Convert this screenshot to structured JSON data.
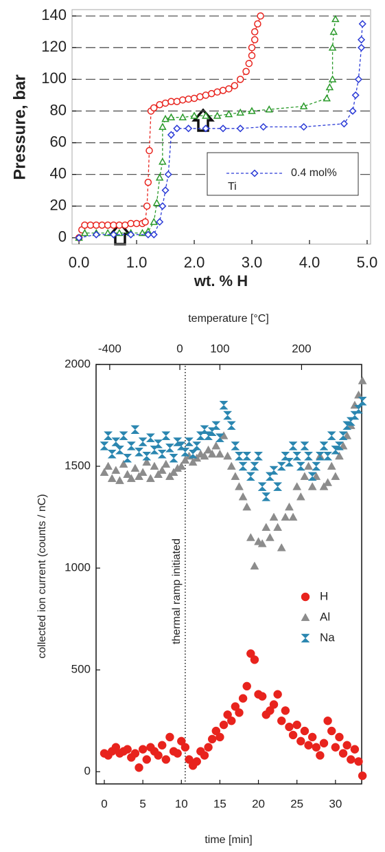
{
  "chart_data": [
    {
      "type": "line",
      "xlabel": "wt. % H",
      "ylabel": "Pressure, bar",
      "xlim": [
        -0.12,
        5.06
      ],
      "ylim": [
        -4,
        144
      ],
      "xticks": [
        {
          "value": 0,
          "label": "0.0"
        },
        {
          "value": 1,
          "label": "1.0"
        },
        {
          "value": 2,
          "label": "2.0"
        },
        {
          "value": 3,
          "label": "3.0"
        },
        {
          "value": 4,
          "label": "4.0"
        },
        {
          "value": 5,
          "label": "5.0"
        }
      ],
      "yticks": [
        0,
        20,
        40,
        60,
        80,
        100,
        120,
        140
      ],
      "grid": true,
      "legend_subtext": "Ti",
      "series": [
        {
          "color": "#e8231d",
          "marker": "circle",
          "x": [
            0,
            0.05,
            0.1,
            0.2,
            0.3,
            0.4,
            0.5,
            0.6,
            0.7,
            0.8,
            0.9,
            1.0,
            1.1,
            1.15,
            1.18,
            1.2,
            1.22,
            1.25,
            1.3,
            1.4,
            1.5,
            1.6,
            1.7,
            1.8,
            1.9,
            2.0,
            2.1,
            2.2,
            2.3,
            2.4,
            2.5,
            2.6,
            2.7,
            2.8,
            2.9,
            2.95,
            3.0,
            3.0,
            3.05,
            3.05,
            3.1,
            3.15
          ],
          "values": [
            0,
            5,
            8,
            8,
            8,
            8,
            8,
            8,
            8,
            8,
            9,
            9,
            9,
            10,
            20,
            35,
            55,
            80,
            82,
            84,
            85,
            86,
            86,
            87,
            87.5,
            88,
            89,
            90,
            91,
            92,
            93,
            94,
            96,
            100,
            105,
            110,
            115,
            120,
            125,
            130,
            135,
            140
          ]
        },
        {
          "color": "#2a9a2a",
          "marker": "triangle",
          "x": [
            0,
            0.1,
            0.3,
            0.5,
            0.7,
            0.9,
            1.1,
            1.2,
            1.3,
            1.35,
            1.4,
            1.45,
            1.45,
            1.5,
            1.6,
            1.8,
            2.0,
            2.2,
            2.4,
            2.6,
            2.8,
            3.0,
            3.3,
            3.9,
            4.3,
            4.35,
            4.4,
            4.4,
            4.42,
            4.45
          ],
          "values": [
            0,
            3,
            3,
            3,
            3,
            3,
            3,
            4,
            10,
            22,
            38,
            48,
            70,
            75,
            76,
            76,
            77,
            77,
            77,
            78,
            79,
            80,
            81,
            83,
            88,
            95,
            100,
            120,
            130,
            138
          ]
        },
        {
          "name": "0.4 mol%",
          "color": "#2a3ad6",
          "marker": "diamond",
          "x": [
            0,
            0.3,
            0.6,
            0.9,
            1.2,
            1.3,
            1.4,
            1.45,
            1.5,
            1.55,
            1.6,
            1.7,
            1.9,
            2.2,
            2.5,
            2.8,
            3.2,
            3.9,
            4.6,
            4.75,
            4.8,
            4.85,
            4.9,
            4.9,
            4.92
          ],
          "values": [
            0,
            2,
            2,
            2,
            2,
            2,
            10,
            20,
            30,
            40,
            65,
            69,
            69,
            69,
            69,
            69,
            70,
            70,
            72,
            80,
            90,
            100,
            120,
            125,
            135
          ]
        }
      ]
    },
    {
      "type": "scatter",
      "xlabel": "time [min]",
      "ylabel": "collected ion current (counts / nC)",
      "x2label": "temperature [°C]",
      "xlim": [
        -1.07,
        33.4
      ],
      "ylim": [
        -60,
        2000
      ],
      "xticks": [
        0,
        5,
        10,
        15,
        20,
        25,
        30
      ],
      "yticks": [
        0,
        500,
        1000,
        1500,
        2000
      ],
      "x2ticks": [
        {
          "value": 0.7,
          "label": "-400"
        },
        {
          "value": 9.8,
          "label": "0"
        },
        {
          "value": 15,
          "label": "100"
        },
        {
          "value": 25.6,
          "label": "200"
        }
      ],
      "annotations": [
        {
          "text": "thermal ramp initiated",
          "x": 10.5
        }
      ],
      "x": [
        0,
        0.5,
        1,
        1.5,
        2,
        2.5,
        3,
        3.5,
        4,
        4.5,
        5,
        5.5,
        6,
        6.5,
        7,
        7.5,
        8,
        8.5,
        9,
        9.5,
        10,
        10.5,
        11,
        11.5,
        12,
        12.5,
        13,
        13.5,
        14,
        14.5,
        15,
        15.5,
        16,
        16.5,
        17,
        17.5,
        18,
        18.5,
        19,
        19.5,
        20,
        20.5,
        21,
        21.5,
        22,
        22.5,
        23,
        23.5,
        24,
        24.5,
        25,
        25.5,
        26,
        26.5,
        27,
        27.5,
        28,
        28.5,
        29,
        29.5,
        30,
        30.5,
        31,
        31.5,
        32,
        32.5,
        33,
        33.5
      ],
      "series": [
        {
          "name": "H",
          "color": "#e8231d",
          "marker": "circle",
          "values": [
            90,
            80,
            100,
            120,
            90,
            100,
            110,
            70,
            90,
            20,
            110,
            60,
            120,
            100,
            80,
            130,
            60,
            170,
            100,
            90,
            150,
            120,
            60,
            30,
            50,
            100,
            80,
            120,
            160,
            200,
            170,
            230,
            280,
            250,
            320,
            290,
            360,
            420,
            580,
            550,
            380,
            370,
            280,
            300,
            330,
            380,
            250,
            300,
            220,
            180,
            230,
            150,
            200,
            130,
            170,
            120,
            80,
            140,
            250,
            200,
            120,
            170,
            90,
            130,
            60,
            110,
            50,
            -20
          ]
        },
        {
          "name": "Al",
          "color": "#8c8c8c",
          "marker": "triangle",
          "values": [
            1470,
            1500,
            1440,
            1480,
            1430,
            1510,
            1460,
            1440,
            1490,
            1450,
            1470,
            1520,
            1440,
            1500,
            1460,
            1480,
            1510,
            1450,
            1470,
            1490,
            1500,
            1530,
            1550,
            1520,
            1540,
            1560,
            1550,
            1580,
            1560,
            1600,
            1560,
            1650,
            1550,
            1500,
            1450,
            1400,
            1350,
            1300,
            1150,
            1010,
            1130,
            1120,
            1200,
            1150,
            1250,
            1200,
            1100,
            1250,
            1300,
            1250,
            1400,
            1350,
            1450,
            1500,
            1400,
            1450,
            1550,
            1400,
            1420,
            1500,
            1450,
            1550,
            1600,
            1650,
            1700,
            1800,
            1850,
            1920
          ]
        },
        {
          "name": "Na",
          "color": "#2a86b0",
          "marker": "hourglass",
          "values": [
            1600,
            1650,
            1560,
            1620,
            1580,
            1650,
            1540,
            1600,
            1680,
            1570,
            1620,
            1550,
            1640,
            1580,
            1610,
            1560,
            1650,
            1590,
            1540,
            1620,
            1600,
            1570,
            1620,
            1560,
            1600,
            1650,
            1680,
            1650,
            1670,
            1700,
            1640,
            1800,
            1750,
            1700,
            1600,
            1550,
            1500,
            1550,
            1450,
            1500,
            1550,
            1400,
            1350,
            1450,
            1480,
            1400,
            1500,
            1550,
            1520,
            1600,
            1550,
            1500,
            1600,
            1550,
            1450,
            1500,
            1550,
            1600,
            1550,
            1650,
            1580,
            1600,
            1650,
            1700,
            1720,
            1750,
            1780,
            1820
          ]
        }
      ]
    }
  ]
}
